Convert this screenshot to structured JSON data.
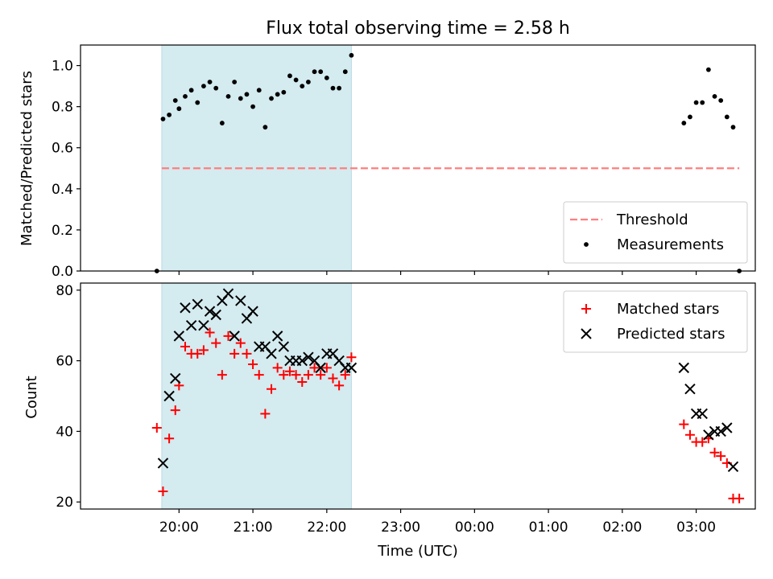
{
  "figure": {
    "title": "Flux total observing time = 2.58 h",
    "xlabel": "Time (UTC)",
    "x_tick_labels": [
      "20:00",
      "21:00",
      "22:00",
      "23:00",
      "00:00",
      "01:00",
      "02:00",
      "03:00"
    ],
    "shaded_interval": [
      "19:46",
      "22:20"
    ],
    "shade_color": "#d4ebf0"
  },
  "chart_data": [
    {
      "type": "scatter",
      "ylabel": "Matched/Predicted stars",
      "ylim": [
        0,
        1.1
      ],
      "y_ticks": [
        "0.0",
        "0.2",
        "0.4",
        "0.6",
        "0.8",
        "1.0"
      ],
      "legend_position": "lower-right",
      "threshold": {
        "name": "Threshold",
        "value": 0.5,
        "x_range": [
          "19:46",
          "03:35"
        ],
        "color": "#ff7f7f"
      },
      "series": [
        {
          "name": "Measurements",
          "color": "#000000",
          "marker": "dot",
          "points": [
            [
              "19:42",
              0.0
            ],
            [
              "19:47",
              0.74
            ],
            [
              "19:52",
              0.76
            ],
            [
              "19:57",
              0.83
            ],
            [
              "20:00",
              0.79
            ],
            [
              "20:05",
              0.85
            ],
            [
              "20:10",
              0.88
            ],
            [
              "20:15",
              0.82
            ],
            [
              "20:20",
              0.9
            ],
            [
              "20:25",
              0.92
            ],
            [
              "20:30",
              0.89
            ],
            [
              "20:35",
              0.72
            ],
            [
              "20:40",
              0.85
            ],
            [
              "20:45",
              0.92
            ],
            [
              "20:50",
              0.84
            ],
            [
              "20:55",
              0.86
            ],
            [
              "21:00",
              0.8
            ],
            [
              "21:05",
              0.88
            ],
            [
              "21:10",
              0.7
            ],
            [
              "21:15",
              0.84
            ],
            [
              "21:20",
              0.86
            ],
            [
              "21:25",
              0.87
            ],
            [
              "21:30",
              0.95
            ],
            [
              "21:35",
              0.93
            ],
            [
              "21:40",
              0.9
            ],
            [
              "21:45",
              0.92
            ],
            [
              "21:50",
              0.97
            ],
            [
              "21:55",
              0.97
            ],
            [
              "22:00",
              0.94
            ],
            [
              "22:05",
              0.89
            ],
            [
              "22:10",
              0.89
            ],
            [
              "22:15",
              0.97
            ],
            [
              "22:20",
              1.05
            ],
            [
              "02:50",
              0.72
            ],
            [
              "02:55",
              0.75
            ],
            [
              "03:00",
              0.82
            ],
            [
              "03:05",
              0.82
            ],
            [
              "03:10",
              0.98
            ],
            [
              "03:15",
              0.85
            ],
            [
              "03:20",
              0.83
            ],
            [
              "03:25",
              0.75
            ],
            [
              "03:30",
              0.7
            ],
            [
              "03:35",
              0.0
            ]
          ]
        }
      ]
    },
    {
      "type": "scatter",
      "ylabel": "Count",
      "ylim": [
        18,
        82
      ],
      "y_ticks": [
        "20",
        "40",
        "60",
        "80"
      ],
      "legend_position": "upper-right",
      "series": [
        {
          "name": "Matched stars",
          "color": "#ff0000",
          "marker": "plus",
          "points": [
            [
              "19:42",
              41
            ],
            [
              "19:47",
              23
            ],
            [
              "19:52",
              38
            ],
            [
              "19:57",
              46
            ],
            [
              "20:00",
              53
            ],
            [
              "20:05",
              64
            ],
            [
              "20:10",
              62
            ],
            [
              "20:15",
              62
            ],
            [
              "20:20",
              63
            ],
            [
              "20:25",
              68
            ],
            [
              "20:30",
              65
            ],
            [
              "20:35",
              56
            ],
            [
              "20:40",
              67
            ],
            [
              "20:45",
              62
            ],
            [
              "20:50",
              65
            ],
            [
              "20:55",
              62
            ],
            [
              "21:00",
              59
            ],
            [
              "21:05",
              56
            ],
            [
              "21:10",
              45
            ],
            [
              "21:15",
              52
            ],
            [
              "21:20",
              58
            ],
            [
              "21:25",
              56
            ],
            [
              "21:30",
              57
            ],
            [
              "21:35",
              56
            ],
            [
              "21:40",
              54
            ],
            [
              "21:45",
              56
            ],
            [
              "21:50",
              58
            ],
            [
              "21:55",
              56
            ],
            [
              "22:00",
              58
            ],
            [
              "22:05",
              55
            ],
            [
              "22:10",
              53
            ],
            [
              "22:15",
              56
            ],
            [
              "22:20",
              61
            ],
            [
              "02:50",
              42
            ],
            [
              "02:55",
              39
            ],
            [
              "03:00",
              37
            ],
            [
              "03:05",
              37
            ],
            [
              "03:10",
              38
            ],
            [
              "03:15",
              34
            ],
            [
              "03:20",
              33
            ],
            [
              "03:25",
              31
            ],
            [
              "03:30",
              21
            ],
            [
              "03:35",
              21
            ]
          ]
        },
        {
          "name": "Predicted stars",
          "color": "#000000",
          "marker": "x",
          "points": [
            [
              "19:47",
              31
            ],
            [
              "19:52",
              50
            ],
            [
              "19:57",
              55
            ],
            [
              "20:00",
              67
            ],
            [
              "20:05",
              75
            ],
            [
              "20:10",
              70
            ],
            [
              "20:15",
              76
            ],
            [
              "20:20",
              70
            ],
            [
              "20:25",
              74
            ],
            [
              "20:30",
              73
            ],
            [
              "20:35",
              77
            ],
            [
              "20:40",
              79
            ],
            [
              "20:45",
              67
            ],
            [
              "20:50",
              77
            ],
            [
              "20:55",
              72
            ],
            [
              "21:00",
              74
            ],
            [
              "21:05",
              64
            ],
            [
              "21:10",
              64
            ],
            [
              "21:15",
              62
            ],
            [
              "21:20",
              67
            ],
            [
              "21:25",
              64
            ],
            [
              "21:30",
              60
            ],
            [
              "21:35",
              60
            ],
            [
              "21:40",
              60
            ],
            [
              "21:45",
              61
            ],
            [
              "21:50",
              60
            ],
            [
              "21:55",
              58
            ],
            [
              "22:00",
              62
            ],
            [
              "22:05",
              62
            ],
            [
              "22:10",
              60
            ],
            [
              "22:15",
              58
            ],
            [
              "22:20",
              58
            ],
            [
              "02:50",
              58
            ],
            [
              "02:55",
              52
            ],
            [
              "03:00",
              45
            ],
            [
              "03:05",
              45
            ],
            [
              "03:10",
              39
            ],
            [
              "03:15",
              40
            ],
            [
              "03:20",
              40
            ],
            [
              "03:25",
              41
            ],
            [
              "03:30",
              30
            ]
          ]
        }
      ]
    }
  ]
}
